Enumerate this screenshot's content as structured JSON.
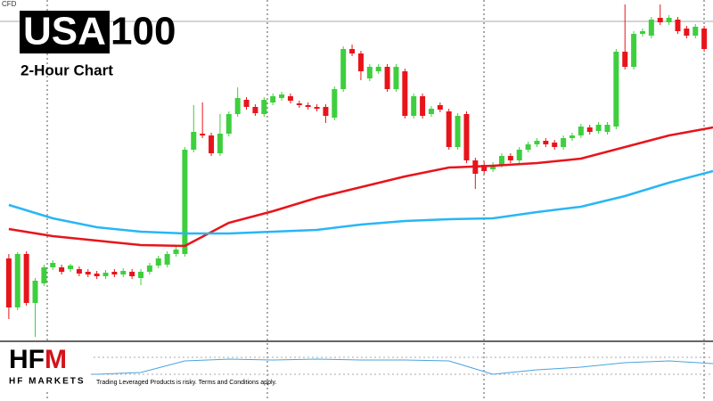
{
  "symbol_label": "CFD",
  "title": {
    "boxed": "USA",
    "plain": "100"
  },
  "subtitle": "2-Hour Chart",
  "brand": {
    "logo_start": "HF",
    "logo_end": "M",
    "name": "HF MARKETS",
    "disclaimer": "Trading Leveraged Products is risky. Terms and Conditions apply."
  },
  "chart_data": [
    {
      "type": "candlestick",
      "up_color": "#3ecf3e",
      "down_color": "#e8141b",
      "xlim": [
        -1,
        80
      ],
      "ylim": [
        0,
        383
      ],
      "open": [
        93,
        38,
        98,
        43,
        65,
        83,
        83,
        81,
        81,
        78,
        76,
        73,
        78,
        75,
        78,
        71,
        78,
        85,
        86,
        98,
        98,
        215,
        233,
        231,
        211,
        233,
        255,
        271,
        263,
        255,
        268,
        273,
        275,
        267,
        265,
        263,
        263,
        251,
        283,
        328,
        323,
        295,
        303,
        308,
        283,
        303,
        253,
        275,
        255,
        265,
        258,
        218,
        255,
        203,
        198,
        193,
        198,
        208,
        203,
        215,
        221,
        225,
        223,
        218,
        228,
        231,
        240,
        236,
        235,
        241,
        325,
        308,
        345,
        343,
        363,
        358,
        361,
        351,
        343,
        351
      ],
      "high": [
        98,
        100,
        101,
        71,
        86,
        91,
        86,
        87,
        84,
        81,
        79,
        80,
        81,
        82,
        81,
        81,
        88,
        96,
        101,
        106,
        218,
        265,
        268,
        234,
        255,
        258,
        285,
        274,
        266,
        274,
        278,
        280,
        278,
        270,
        268,
        266,
        266,
        286,
        331,
        333,
        326,
        311,
        311,
        311,
        311,
        306,
        278,
        278,
        264,
        268,
        261,
        256,
        258,
        206,
        201,
        201,
        211,
        211,
        218,
        224,
        228,
        228,
        226,
        231,
        234,
        244,
        243,
        246,
        246,
        328,
        378,
        348,
        351,
        364,
        378,
        366,
        364,
        354,
        356,
        354
      ],
      "low": [
        25,
        35,
        40,
        5,
        62,
        80,
        75,
        78,
        73,
        72,
        70,
        70,
        72,
        72,
        70,
        63,
        75,
        82,
        83,
        95,
        95,
        212,
        228,
        208,
        208,
        230,
        252,
        260,
        253,
        252,
        265,
        270,
        267,
        262,
        260,
        258,
        245,
        248,
        280,
        320,
        293,
        292,
        300,
        280,
        280,
        250,
        250,
        250,
        252,
        257,
        215,
        215,
        200,
        171,
        188,
        190,
        195,
        200,
        200,
        212,
        218,
        218,
        215,
        215,
        225,
        228,
        232,
        233,
        232,
        238,
        305,
        305,
        342,
        340,
        355,
        355,
        345,
        340,
        340,
        325
      ],
      "close": [
        38,
        98,
        43,
        68,
        83,
        88,
        78,
        85,
        76,
        75,
        73,
        77,
        75,
        79,
        73,
        78,
        85,
        93,
        98,
        103,
        215,
        235,
        231,
        211,
        233,
        255,
        273,
        263,
        256,
        271,
        275,
        277,
        270,
        265,
        263,
        261,
        253,
        283,
        328,
        323,
        303,
        308,
        308,
        283,
        308,
        253,
        275,
        253,
        261,
        260,
        218,
        253,
        203,
        188,
        191,
        198,
        208,
        203,
        215,
        221,
        225,
        221,
        218,
        228,
        231,
        241,
        235,
        243,
        243,
        325,
        308,
        345,
        348,
        361,
        358,
        363,
        348,
        343,
        353,
        328
      ],
      "lines": [
        {
          "color": "#e8141b",
          "x": [
            0,
            5,
            10,
            15,
            20,
            25,
            30,
            35,
            40,
            45,
            50,
            55,
            60,
            65,
            70,
            75,
            80
          ],
          "values": [
            126,
            118,
            113,
            108,
            107,
            133,
            146,
            161,
            173,
            185,
            195,
            197,
            200,
            205,
            218,
            231,
            240
          ]
        },
        {
          "color": "#29b6f6",
          "x": [
            0,
            5,
            10,
            15,
            20,
            25,
            30,
            35,
            40,
            45,
            50,
            55,
            60,
            65,
            70,
            75,
            80
          ],
          "values": [
            153,
            138,
            128,
            123,
            121,
            121,
            123,
            125,
            131,
            135,
            137,
            138,
            145,
            151,
            163,
            178,
            191
          ]
        }
      ]
    },
    {
      "type": "line",
      "color": "#4aa3df",
      "xlim": [
        -1,
        80
      ],
      "ylim": [
        0,
        57
      ],
      "x": [
        0,
        5,
        10,
        15,
        20,
        25,
        30,
        35,
        40,
        45,
        50,
        55,
        60,
        65,
        70,
        75,
        80
      ],
      "values": [
        20,
        20,
        20,
        22,
        35,
        37,
        36,
        37,
        36,
        36,
        35,
        20,
        25,
        28,
        33,
        35,
        32
      ]
    }
  ]
}
